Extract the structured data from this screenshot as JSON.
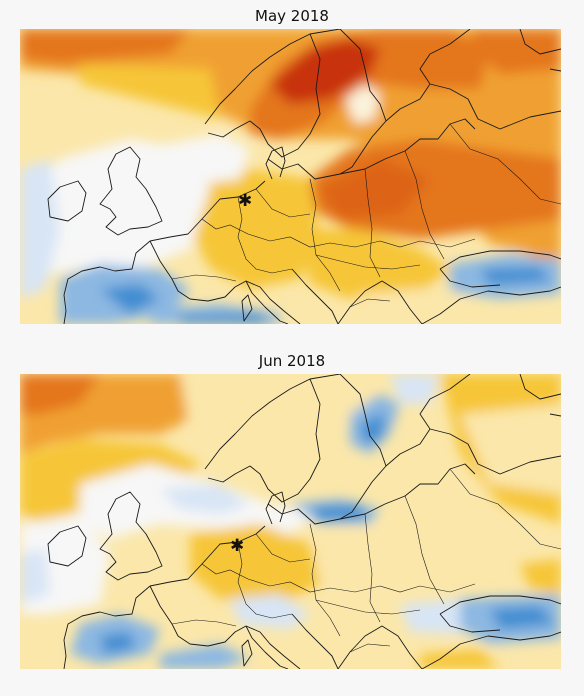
{
  "panels": [
    {
      "title": "May 2018"
    },
    {
      "title": "Jun 2018"
    }
  ],
  "marker": {
    "symbol": "✱"
  },
  "colors": {
    "strong_warm": "#c8300c",
    "warm": "#e4761c",
    "orange": "#f0a030",
    "yellow": "#f6c638",
    "pale_yellow": "#fbe7aa",
    "neutral": "#f7f7f7",
    "pale_blue": "#d8e5f5",
    "blue": "#8cb8e2",
    "strong_blue": "#3f8dd1"
  }
}
